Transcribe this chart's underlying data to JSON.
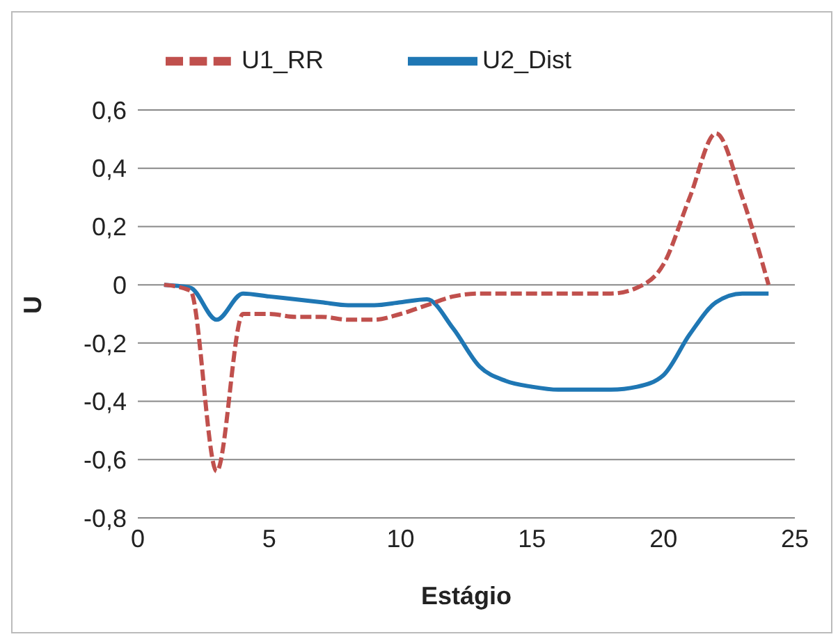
{
  "chart_data": {
    "type": "line",
    "xlabel": "Estágio",
    "ylabel": "U",
    "x": [
      1,
      2,
      3,
      4,
      5,
      6,
      7,
      8,
      9,
      10,
      11,
      12,
      13,
      14,
      15,
      16,
      17,
      18,
      19,
      20,
      21,
      22,
      23,
      24
    ],
    "series": [
      {
        "name": "U1_RR",
        "color": "#c0504d",
        "line_style": "dashed",
        "values": [
          0,
          -0.02,
          -0.64,
          -0.1,
          -0.1,
          -0.11,
          -0.11,
          -0.12,
          -0.12,
          -0.1,
          -0.07,
          -0.04,
          -0.03,
          -0.03,
          -0.03,
          -0.03,
          -0.03,
          -0.03,
          -0.01,
          0.07,
          0.3,
          0.52,
          0.3,
          0
        ]
      },
      {
        "name": "U2_Dist",
        "color": "#1f77b4",
        "line_style": "solid",
        "values": [
          0,
          -0.01,
          -0.12,
          -0.03,
          -0.04,
          -0.05,
          -0.06,
          -0.07,
          -0.07,
          -0.06,
          -0.05,
          -0.15,
          -0.28,
          -0.33,
          -0.35,
          -0.36,
          -0.36,
          -0.36,
          -0.35,
          -0.31,
          -0.17,
          -0.06,
          -0.03,
          -0.03
        ]
      }
    ],
    "xlim": [
      0,
      25
    ],
    "xticks": [
      0,
      5,
      10,
      15,
      20,
      25
    ],
    "ylim": [
      -0.8,
      0.6
    ],
    "yticks": [
      {
        "value": -0.8,
        "label": "-0,8"
      },
      {
        "value": -0.6,
        "label": "-0,6"
      },
      {
        "value": -0.4,
        "label": "-0,4"
      },
      {
        "value": -0.2,
        "label": "-0,2"
      },
      0,
      {
        "value": 0.2,
        "label": "0,2"
      },
      {
        "value": 0.4,
        "label": "0,4"
      },
      {
        "value": 0.6,
        "label": "0,6"
      }
    ],
    "grid": "y",
    "legend": "top",
    "marker": "none"
  }
}
